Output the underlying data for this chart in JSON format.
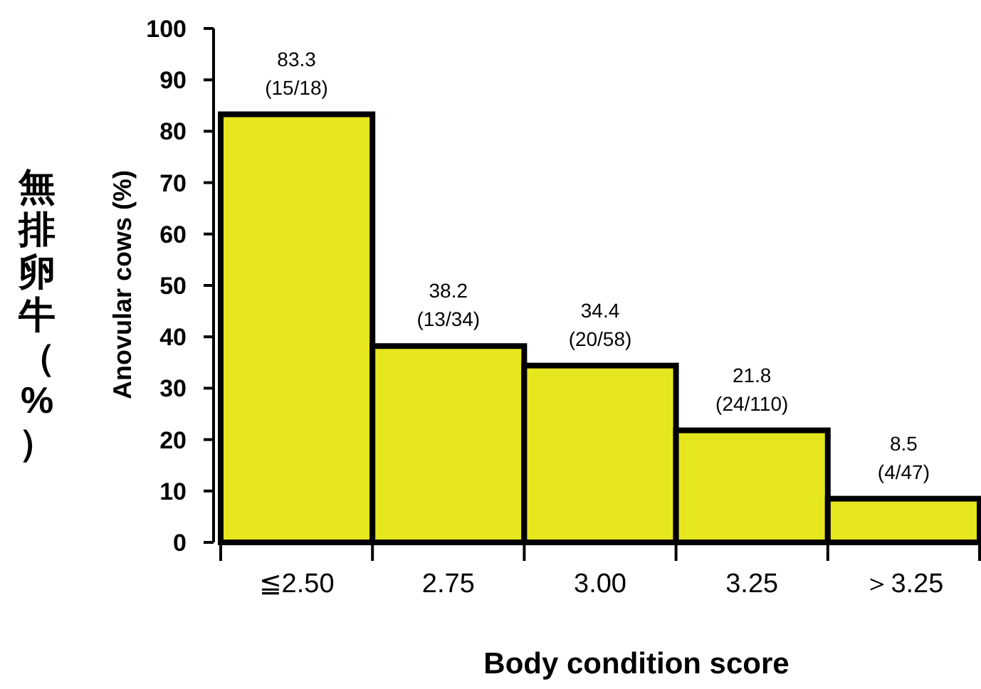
{
  "chart_data": {
    "type": "bar",
    "xlabel": "Body condition score",
    "ylabel": "Anovular cows (%)",
    "annotations": [
      "無排卵牛（%）"
    ],
    "categories": [
      "≦2.50",
      "2.75",
      "3.00",
      "3.25",
      "＞3.25"
    ],
    "values": [
      83.3,
      38.2,
      34.4,
      21.8,
      8.5
    ],
    "value_labels": [
      "83.3\n(15/18)",
      "38.2\n(13/34)",
      "34.4\n(20/58)",
      "21.8\n(24/110)",
      "8.5\n(4/47)"
    ],
    "color": "#e6e61e",
    "ylim": [
      0,
      100
    ],
    "yticks": [
      0,
      10,
      20,
      30,
      40,
      50,
      60,
      70,
      80,
      90,
      100
    ]
  }
}
